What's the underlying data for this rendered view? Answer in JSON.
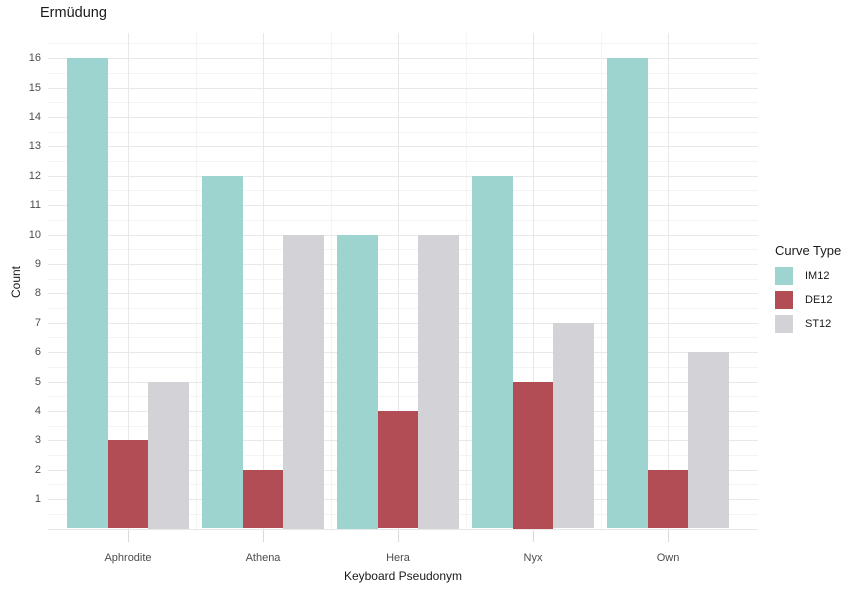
{
  "chart_data": {
    "type": "bar",
    "bar_mode": "grouped",
    "title": "Ermüdung",
    "xlabel": "Keyboard Pseudonym",
    "ylabel": "Count",
    "categories": [
      "Aphrodite",
      "Athena",
      "Hera",
      "Nyx",
      "Own"
    ],
    "series": [
      {
        "name": "IM12",
        "color": "#9ed4d0",
        "values": [
          16,
          12,
          10,
          12,
          16
        ]
      },
      {
        "name": "DE12",
        "color": "#b24d56",
        "values": [
          3,
          2,
          4,
          5,
          2
        ]
      },
      {
        "name": "ST12",
        "color": "#d2d2d7",
        "values": [
          5,
          10,
          10,
          7,
          6
        ]
      }
    ],
    "ylim": [
      0,
      16.8
    ],
    "yticks": [
      1,
      2,
      3,
      4,
      5,
      6,
      7,
      8,
      9,
      10,
      11,
      12,
      13,
      14,
      15,
      16
    ],
    "grid": "major and minor, horizontal every 0.5, vertical at category centers and midpoints",
    "legend_title": "Curve Type",
    "legend_position": "right",
    "theme": {
      "background": "#ffffff",
      "grid_major_color": "#e8e8e8",
      "grid_minor_color": "#f4f4f4",
      "axis_text_color": "#4d4d4d",
      "text_color": "#1a1a1a"
    }
  }
}
